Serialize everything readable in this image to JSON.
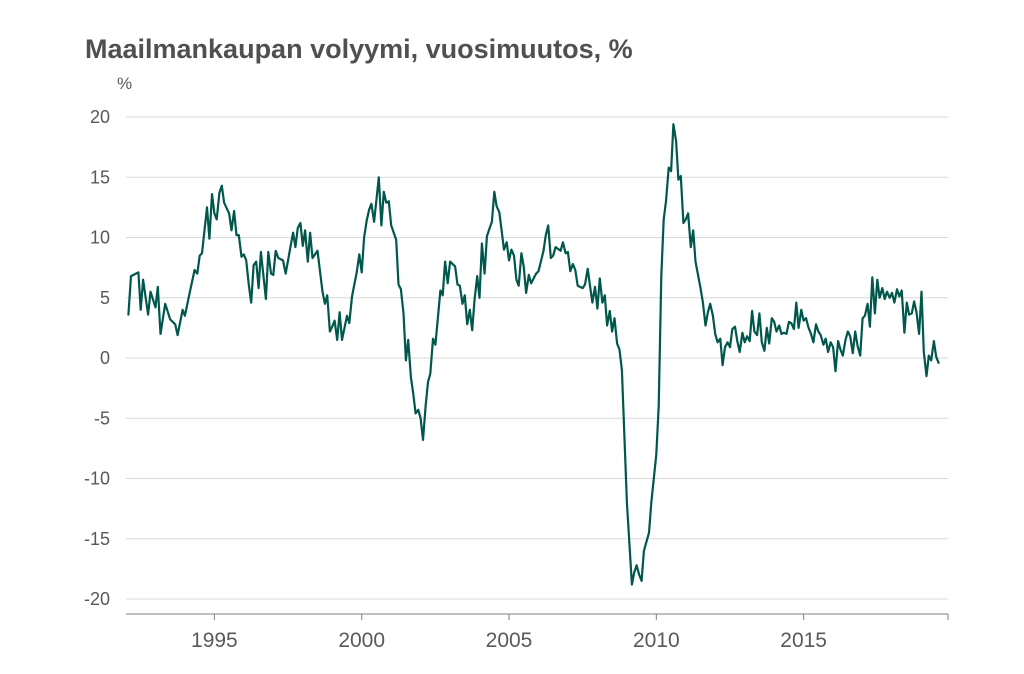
{
  "title": "Maailmankaupan volyymi, vuosimuutos, %",
  "y_unit": "%",
  "colors": {
    "line": "#00574b",
    "grid": "#d9d9d9",
    "axis": "#7f7f7f",
    "text": "#595959"
  },
  "chart_data": {
    "type": "line",
    "title": "Maailmankaupan volyymi, vuosimuutos, %",
    "xlabel": "",
    "ylabel": "%",
    "xlim": [
      1992.0,
      2019.9
    ],
    "ylim": [
      -20,
      20
    ],
    "x_ticks": [
      1995,
      2000,
      2005,
      2010,
      2015
    ],
    "x_tick_labels": [
      "1995",
      "2000",
      "2005",
      "2010",
      "2015"
    ],
    "y_ticks": [
      20,
      15,
      10,
      5,
      0,
      -5,
      -10,
      -15,
      -20
    ],
    "y_tick_labels": [
      "20",
      "15",
      "10",
      "5",
      "0",
      "-5",
      "-10",
      "-15",
      "-20"
    ],
    "grid": "horizontal",
    "legend": "none",
    "series": [
      {
        "points": [
          [
            1992.08,
            3.6
          ],
          [
            1992.17,
            6.8
          ],
          [
            1992.42,
            7.1
          ],
          [
            1992.5,
            4.0
          ],
          [
            1992.58,
            6.5
          ],
          [
            1992.75,
            3.6
          ],
          [
            1992.83,
            5.5
          ],
          [
            1993.0,
            4.2
          ],
          [
            1993.08,
            5.9
          ],
          [
            1993.17,
            2.0
          ],
          [
            1993.33,
            4.5
          ],
          [
            1993.5,
            3.2
          ],
          [
            1993.67,
            2.8
          ],
          [
            1993.75,
            1.9
          ],
          [
            1993.92,
            4.0
          ],
          [
            1994.0,
            3.5
          ],
          [
            1994.17,
            5.5
          ],
          [
            1994.33,
            7.3
          ],
          [
            1994.42,
            7.0
          ],
          [
            1994.5,
            8.5
          ],
          [
            1994.58,
            8.7
          ],
          [
            1994.75,
            12.5
          ],
          [
            1994.83,
            9.9
          ],
          [
            1994.92,
            13.6
          ],
          [
            1995.0,
            12.0
          ],
          [
            1995.08,
            11.5
          ],
          [
            1995.17,
            13.7
          ],
          [
            1995.25,
            14.3
          ],
          [
            1995.33,
            12.9
          ],
          [
            1995.5,
            12.0
          ],
          [
            1995.58,
            10.6
          ],
          [
            1995.67,
            12.2
          ],
          [
            1995.75,
            10.2
          ],
          [
            1995.83,
            10.2
          ],
          [
            1995.92,
            8.4
          ],
          [
            1996.0,
            8.6
          ],
          [
            1996.08,
            8.1
          ],
          [
            1996.17,
            6.0
          ],
          [
            1996.25,
            4.6
          ],
          [
            1996.33,
            7.7
          ],
          [
            1996.42,
            8.0
          ],
          [
            1996.5,
            5.8
          ],
          [
            1996.58,
            8.8
          ],
          [
            1996.75,
            4.9
          ],
          [
            1996.83,
            8.8
          ],
          [
            1996.92,
            7.0
          ],
          [
            1997.0,
            6.9
          ],
          [
            1997.08,
            8.9
          ],
          [
            1997.17,
            8.3
          ],
          [
            1997.33,
            8.1
          ],
          [
            1997.42,
            7.0
          ],
          [
            1997.58,
            9.2
          ],
          [
            1997.67,
            10.4
          ],
          [
            1997.75,
            9.2
          ],
          [
            1997.83,
            10.8
          ],
          [
            1997.92,
            11.2
          ],
          [
            1998.0,
            9.3
          ],
          [
            1998.08,
            10.6
          ],
          [
            1998.17,
            8.0
          ],
          [
            1998.25,
            10.4
          ],
          [
            1998.33,
            8.3
          ],
          [
            1998.5,
            8.9
          ],
          [
            1998.67,
            5.5
          ],
          [
            1998.75,
            4.5
          ],
          [
            1998.83,
            5.2
          ],
          [
            1998.92,
            2.2
          ],
          [
            1999.0,
            2.6
          ],
          [
            1999.08,
            3.1
          ],
          [
            1999.17,
            1.5
          ],
          [
            1999.25,
            3.8
          ],
          [
            1999.33,
            1.5
          ],
          [
            1999.5,
            3.5
          ],
          [
            1999.58,
            2.9
          ],
          [
            1999.67,
            5.1
          ],
          [
            1999.83,
            7.1
          ],
          [
            1999.92,
            8.6
          ],
          [
            2000.0,
            7.1
          ],
          [
            2000.08,
            10.0
          ],
          [
            2000.17,
            11.4
          ],
          [
            2000.25,
            12.3
          ],
          [
            2000.33,
            12.8
          ],
          [
            2000.42,
            11.3
          ],
          [
            2000.5,
            13.1
          ],
          [
            2000.58,
            15.0
          ],
          [
            2000.67,
            11.0
          ],
          [
            2000.75,
            13.8
          ],
          [
            2000.83,
            12.9
          ],
          [
            2000.92,
            13.0
          ],
          [
            2001.0,
            11.0
          ],
          [
            2001.17,
            9.8
          ],
          [
            2001.25,
            6.1
          ],
          [
            2001.33,
            5.7
          ],
          [
            2001.42,
            3.7
          ],
          [
            2001.5,
            -0.2
          ],
          [
            2001.58,
            1.5
          ],
          [
            2001.67,
            -1.6
          ],
          [
            2001.75,
            -3.0
          ],
          [
            2001.83,
            -4.6
          ],
          [
            2001.92,
            -4.3
          ],
          [
            2002.0,
            -5.0
          ],
          [
            2002.08,
            -6.8
          ],
          [
            2002.17,
            -4.0
          ],
          [
            2002.25,
            -2.0
          ],
          [
            2002.33,
            -1.3
          ],
          [
            2002.42,
            1.6
          ],
          [
            2002.5,
            1.1
          ],
          [
            2002.67,
            5.6
          ],
          [
            2002.75,
            5.2
          ],
          [
            2002.83,
            8.0
          ],
          [
            2002.92,
            6.2
          ],
          [
            2003.0,
            8.0
          ],
          [
            2003.17,
            7.6
          ],
          [
            2003.25,
            6.1
          ],
          [
            2003.33,
            6.0
          ],
          [
            2003.42,
            4.5
          ],
          [
            2003.5,
            5.2
          ],
          [
            2003.58,
            2.8
          ],
          [
            2003.67,
            4.0
          ],
          [
            2003.75,
            2.3
          ],
          [
            2003.83,
            4.8
          ],
          [
            2003.92,
            6.8
          ],
          [
            2004.0,
            5.0
          ],
          [
            2004.08,
            9.5
          ],
          [
            2004.17,
            7.0
          ],
          [
            2004.25,
            10.1
          ],
          [
            2004.33,
            10.7
          ],
          [
            2004.42,
            11.3
          ],
          [
            2004.5,
            13.8
          ],
          [
            2004.58,
            12.6
          ],
          [
            2004.67,
            12.1
          ],
          [
            2004.75,
            10.6
          ],
          [
            2004.83,
            9.0
          ],
          [
            2004.92,
            9.6
          ],
          [
            2005.0,
            8.1
          ],
          [
            2005.08,
            9.0
          ],
          [
            2005.17,
            8.5
          ],
          [
            2005.25,
            6.5
          ],
          [
            2005.33,
            6.0
          ],
          [
            2005.42,
            8.7
          ],
          [
            2005.5,
            7.6
          ],
          [
            2005.58,
            5.4
          ],
          [
            2005.67,
            6.9
          ],
          [
            2005.75,
            6.2
          ],
          [
            2005.92,
            7.0
          ],
          [
            2006.0,
            7.2
          ],
          [
            2006.17,
            8.9
          ],
          [
            2006.25,
            10.2
          ],
          [
            2006.33,
            11.0
          ],
          [
            2006.42,
            8.3
          ],
          [
            2006.5,
            8.5
          ],
          [
            2006.58,
            9.2
          ],
          [
            2006.75,
            8.9
          ],
          [
            2006.83,
            9.6
          ],
          [
            2006.92,
            8.7
          ],
          [
            2007.0,
            8.8
          ],
          [
            2007.08,
            7.2
          ],
          [
            2007.17,
            7.8
          ],
          [
            2007.25,
            7.3
          ],
          [
            2007.33,
            6.0
          ],
          [
            2007.5,
            5.8
          ],
          [
            2007.58,
            6.1
          ],
          [
            2007.67,
            7.4
          ],
          [
            2007.75,
            6.0
          ],
          [
            2007.83,
            4.6
          ],
          [
            2007.92,
            5.9
          ],
          [
            2008.0,
            4.1
          ],
          [
            2008.08,
            6.6
          ],
          [
            2008.17,
            4.6
          ],
          [
            2008.25,
            5.2
          ],
          [
            2008.33,
            2.7
          ],
          [
            2008.42,
            3.9
          ],
          [
            2008.5,
            2.2
          ],
          [
            2008.58,
            3.3
          ],
          [
            2008.67,
            1.2
          ],
          [
            2008.75,
            0.7
          ],
          [
            2008.83,
            -1.0
          ],
          [
            2009.0,
            -12.0
          ],
          [
            2009.17,
            -18.8
          ],
          [
            2009.25,
            -17.8
          ],
          [
            2009.33,
            -17.2
          ],
          [
            2009.42,
            -18.0
          ],
          [
            2009.5,
            -18.5
          ],
          [
            2009.58,
            -16.0
          ],
          [
            2009.75,
            -14.5
          ],
          [
            2009.83,
            -12.0
          ],
          [
            2010.0,
            -8.0
          ],
          [
            2010.08,
            -4.0
          ],
          [
            2010.17,
            6.8
          ],
          [
            2010.25,
            11.5
          ],
          [
            2010.33,
            13.0
          ],
          [
            2010.42,
            15.8
          ],
          [
            2010.5,
            15.5
          ],
          [
            2010.58,
            19.4
          ],
          [
            2010.67,
            18.0
          ],
          [
            2010.75,
            14.8
          ],
          [
            2010.83,
            15.1
          ],
          [
            2010.92,
            11.2
          ],
          [
            2011.0,
            11.5
          ],
          [
            2011.08,
            12.0
          ],
          [
            2011.17,
            9.2
          ],
          [
            2011.25,
            10.6
          ],
          [
            2011.33,
            8.0
          ],
          [
            2011.5,
            5.8
          ],
          [
            2011.58,
            4.6
          ],
          [
            2011.67,
            2.7
          ],
          [
            2011.75,
            3.8
          ],
          [
            2011.83,
            4.5
          ],
          [
            2011.92,
            3.5
          ],
          [
            2012.0,
            2.0
          ],
          [
            2012.08,
            1.3
          ],
          [
            2012.17,
            1.6
          ],
          [
            2012.25,
            -0.6
          ],
          [
            2012.33,
            0.9
          ],
          [
            2012.42,
            1.3
          ],
          [
            2012.5,
            0.9
          ],
          [
            2012.58,
            2.4
          ],
          [
            2012.67,
            2.6
          ],
          [
            2012.75,
            1.4
          ],
          [
            2012.83,
            0.5
          ],
          [
            2012.92,
            2.1
          ],
          [
            2013.0,
            1.3
          ],
          [
            2013.08,
            1.8
          ],
          [
            2013.17,
            1.4
          ],
          [
            2013.25,
            3.9
          ],
          [
            2013.33,
            2.2
          ],
          [
            2013.42,
            1.9
          ],
          [
            2013.5,
            3.7
          ],
          [
            2013.58,
            1.3
          ],
          [
            2013.67,
            0.6
          ],
          [
            2013.75,
            2.5
          ],
          [
            2013.83,
            1.2
          ],
          [
            2013.92,
            3.3
          ],
          [
            2014.0,
            3.0
          ],
          [
            2014.08,
            2.2
          ],
          [
            2014.17,
            2.7
          ],
          [
            2014.25,
            2.0
          ],
          [
            2014.33,
            2.1
          ],
          [
            2014.42,
            2.0
          ],
          [
            2014.5,
            3.0
          ],
          [
            2014.58,
            2.9
          ],
          [
            2014.67,
            2.4
          ],
          [
            2014.75,
            4.6
          ],
          [
            2014.83,
            2.5
          ],
          [
            2014.92,
            4.0
          ],
          [
            2015.0,
            3.1
          ],
          [
            2015.08,
            3.3
          ],
          [
            2015.17,
            2.5
          ],
          [
            2015.25,
            2.0
          ],
          [
            2015.33,
            1.3
          ],
          [
            2015.42,
            2.8
          ],
          [
            2015.5,
            2.2
          ],
          [
            2015.58,
            1.9
          ],
          [
            2015.67,
            1.1
          ],
          [
            2015.75,
            1.6
          ],
          [
            2015.83,
            0.5
          ],
          [
            2015.92,
            1.3
          ],
          [
            2016.0,
            0.9
          ],
          [
            2016.08,
            -1.1
          ],
          [
            2016.17,
            1.4
          ],
          [
            2016.25,
            0.7
          ],
          [
            2016.33,
            0.2
          ],
          [
            2016.42,
            1.5
          ],
          [
            2016.5,
            2.2
          ],
          [
            2016.58,
            1.8
          ],
          [
            2016.67,
            0.4
          ],
          [
            2016.75,
            2.2
          ],
          [
            2016.83,
            1.0
          ],
          [
            2016.92,
            0.2
          ],
          [
            2017.0,
            3.3
          ],
          [
            2017.08,
            3.5
          ],
          [
            2017.17,
            4.5
          ],
          [
            2017.25,
            2.6
          ],
          [
            2017.33,
            6.7
          ],
          [
            2017.42,
            3.7
          ],
          [
            2017.5,
            6.5
          ],
          [
            2017.58,
            5.0
          ],
          [
            2017.67,
            5.8
          ],
          [
            2017.75,
            4.9
          ],
          [
            2017.83,
            5.5
          ],
          [
            2017.92,
            5.0
          ],
          [
            2018.0,
            5.4
          ],
          [
            2018.08,
            4.6
          ],
          [
            2018.17,
            5.7
          ],
          [
            2018.25,
            5.1
          ],
          [
            2018.33,
            5.6
          ],
          [
            2018.42,
            2.1
          ],
          [
            2018.5,
            4.6
          ],
          [
            2018.58,
            3.6
          ],
          [
            2018.67,
            3.7
          ],
          [
            2018.75,
            4.7
          ],
          [
            2018.83,
            3.8
          ],
          [
            2018.92,
            2.0
          ],
          [
            2019.0,
            5.5
          ],
          [
            2019.08,
            0.5
          ],
          [
            2019.17,
            -1.5
          ],
          [
            2019.25,
            0.2
          ],
          [
            2019.33,
            -0.2
          ],
          [
            2019.42,
            1.4
          ],
          [
            2019.5,
            0.1
          ],
          [
            2019.58,
            -0.4
          ]
        ]
      }
    ]
  }
}
